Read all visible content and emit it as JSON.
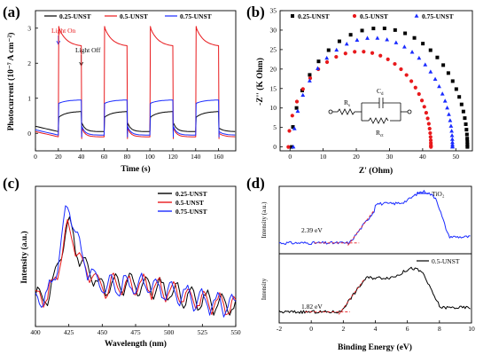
{
  "colors": {
    "series_0.25": "#000000",
    "series_0.5": "#e8191c",
    "series_0.75": "#1a2bff",
    "red_annotation": "#e8191c",
    "dash_fit": "#e8191c"
  },
  "panels": {
    "a": {
      "label": "(a)",
      "ann_on": "Light On",
      "ann_off": "Light Off"
    },
    "b": {
      "label": "(b)",
      "rs": "R",
      "rs_sub": "s",
      "cd": "C",
      "cd_sub": "d",
      "rct": "R",
      "rct_sub": "ct"
    },
    "c": {
      "label": "(c)"
    },
    "d": {
      "label": "(d)",
      "ann_top": "2.39 eV",
      "ann_bottom": "1.82 eV"
    }
  },
  "chart_data": [
    {
      "id": "a",
      "type": "line",
      "xlabel": "Time (s)",
      "ylabel": "Photocurrent (10⁻⁷ A cm⁻²)",
      "xlim": [
        0,
        175
      ],
      "ylim": [
        -0.5,
        3.5
      ],
      "xticks": [
        0,
        20,
        40,
        60,
        80,
        100,
        120,
        140,
        160
      ],
      "yticks": [
        0,
        1,
        2,
        3
      ],
      "legend_position": "top",
      "light_on": [
        20,
        60,
        100,
        140
      ],
      "light_off": [
        40,
        80,
        120,
        160
      ],
      "series": [
        {
          "name": "0.25-UNST",
          "color": "#000000",
          "on_peak": 0.45,
          "on_end": 0.62,
          "dark": 0.05
        },
        {
          "name": "0.5-UNST",
          "color": "#e8191c",
          "on_peak": 3.05,
          "on_end": 2.5,
          "dark": -0.1
        },
        {
          "name": "0.75-UNST",
          "color": "#1a2bff",
          "on_peak": 0.85,
          "on_end": 0.95,
          "dark": -0.05
        }
      ]
    },
    {
      "id": "b",
      "type": "scatter",
      "xlabel": "Z' (Ohm)",
      "ylabel": "-Z'' (K Ohm)",
      "xlim": [
        -3,
        55
      ],
      "ylim": [
        -1,
        35
      ],
      "xticks": [
        0,
        10,
        20,
        30,
        40,
        50
      ],
      "yticks": [
        0,
        5,
        10,
        15,
        20,
        25,
        30,
        35
      ],
      "legend_position": "top",
      "series": [
        {
          "name": "0.25-UNST",
          "color": "#000000",
          "marker": "square",
          "center": 27,
          "radius": 26.5,
          "height": 30.5
        },
        {
          "name": "0.5-UNST",
          "color": "#e8191c",
          "marker": "circle",
          "center": 21,
          "radius": 21.5,
          "height": 24.5
        },
        {
          "name": "0.75-UNST",
          "color": "#1a2bff",
          "marker": "triangle",
          "center": 25,
          "radius": 24,
          "height": 28
        }
      ]
    },
    {
      "id": "c",
      "type": "line",
      "xlabel": "Wavelength (nm)",
      "ylabel": "Intensity (a.u.)",
      "xlim": [
        400,
        550
      ],
      "ylim": [
        0,
        1
      ],
      "xticks": [
        400,
        425,
        450,
        475,
        500,
        525,
        550
      ],
      "legend_position": "top-right",
      "series": [
        {
          "name": "0.25-UNST",
          "color": "#000000",
          "peak": 0.73
        },
        {
          "name": "0.5-UNST",
          "color": "#e8191c",
          "peak": 0.7
        },
        {
          "name": "0.75-UNST",
          "color": "#1a2bff",
          "peak": 0.85
        }
      ]
    },
    {
      "id": "d",
      "type": "line",
      "xlabel": "Binding Energy (eV)",
      "ylabel": "Intensity (a.u.)",
      "xlim": [
        -2,
        10
      ],
      "xticks": [
        -2,
        0,
        2,
        4,
        6,
        8,
        10
      ],
      "legend_position": "top-right",
      "subplots": [
        {
          "name": "TiO₂",
          "color": "#1a2bff",
          "edge": 2.39
        },
        {
          "name": "0.5-UNST",
          "color": "#000000",
          "edge": 1.82
        }
      ]
    }
  ]
}
